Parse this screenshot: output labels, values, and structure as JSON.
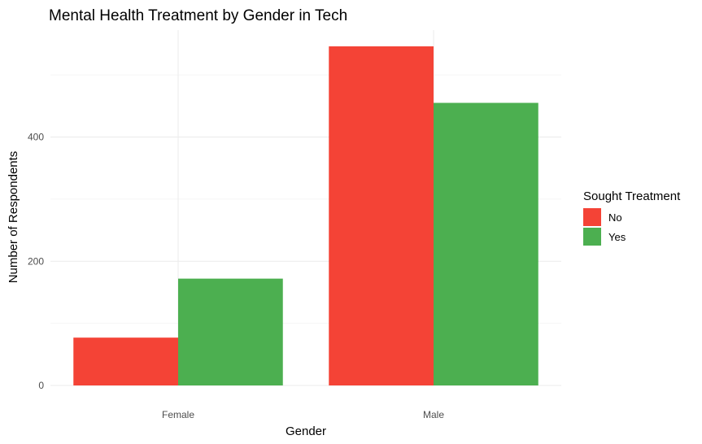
{
  "chart_data": {
    "type": "bar",
    "title": "Mental Health Treatment by Gender in Tech",
    "xlabel": "Gender",
    "ylabel": "Number of Respondents",
    "categories": [
      "Female",
      "Male"
    ],
    "series": [
      {
        "name": "No",
        "color": "#f44336",
        "values": [
          77,
          546
        ]
      },
      {
        "name": "Yes",
        "color": "#4caf50",
        "values": [
          172,
          455
        ]
      }
    ],
    "ylim": [
      0,
      570
    ],
    "yticks": [
      0,
      200,
      400
    ],
    "yticks_labels": [
      "0",
      "200",
      "400"
    ],
    "grid": true,
    "legend": {
      "title": "Sought Treatment",
      "placement": "right",
      "entries": [
        "No",
        "Yes"
      ]
    }
  }
}
